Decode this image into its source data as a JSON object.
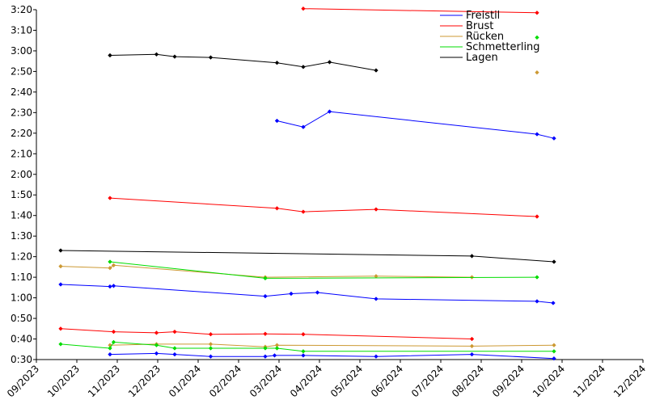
{
  "chart_data": {
    "type": "line",
    "title": "",
    "xlabel": "",
    "ylabel": "",
    "y_unit": "seconds",
    "ylim": [
      30,
      200
    ],
    "y_ticks": [
      {
        "v": 30,
        "label": "0:30"
      },
      {
        "v": 40,
        "label": "0:40"
      },
      {
        "v": 50,
        "label": "0:50"
      },
      {
        "v": 60,
        "label": "1:00"
      },
      {
        "v": 70,
        "label": "1:10"
      },
      {
        "v": 80,
        "label": "1:20"
      },
      {
        "v": 90,
        "label": "1:30"
      },
      {
        "v": 100,
        "label": "1:40"
      },
      {
        "v": 110,
        "label": "1:50"
      },
      {
        "v": 120,
        "label": "2:00"
      },
      {
        "v": 130,
        "label": "2:10"
      },
      {
        "v": 140,
        "label": "2:20"
      },
      {
        "v": 150,
        "label": "2:30"
      },
      {
        "v": 160,
        "label": "2:40"
      },
      {
        "v": 170,
        "label": "2:50"
      },
      {
        "v": 180,
        "label": "3:00"
      },
      {
        "v": 190,
        "label": "3:10"
      },
      {
        "v": 200,
        "label": "3:20"
      }
    ],
    "x_unit": "months since 09/2023",
    "xlim": [
      0,
      15
    ],
    "x_ticks": [
      {
        "v": 0,
        "label": "09/2023"
      },
      {
        "v": 1,
        "label": "10/2023"
      },
      {
        "v": 2,
        "label": "11/2023"
      },
      {
        "v": 3,
        "label": "12/2023"
      },
      {
        "v": 4,
        "label": "01/2024"
      },
      {
        "v": 5,
        "label": "02/2024"
      },
      {
        "v": 6,
        "label": "03/2024"
      },
      {
        "v": 7,
        "label": "04/2024"
      },
      {
        "v": 8,
        "label": "05/2024"
      },
      {
        "v": 9,
        "label": "06/2024"
      },
      {
        "v": 10,
        "label": "07/2024"
      },
      {
        "v": 11,
        "label": "08/2024"
      },
      {
        "v": 12,
        "label": "09/2024"
      },
      {
        "v": 13,
        "label": "10/2024"
      },
      {
        "v": 14,
        "label": "11/2024"
      },
      {
        "v": 15,
        "label": "12/2024"
      }
    ],
    "legend_position": "top-right",
    "series": [
      {
        "name": "Freistil",
        "color": "#0000ff",
        "lines": [
          [
            [
              0.6,
              66.5
            ],
            [
              1.82,
              65.5
            ],
            [
              1.91,
              65.8
            ],
            [
              5.66,
              60.8
            ],
            [
              6.3,
              62.0
            ],
            [
              6.95,
              62.6
            ],
            [
              8.4,
              59.5
            ],
            [
              12.38,
              58.3
            ],
            [
              12.78,
              57.5
            ]
          ],
          [
            [
              5.95,
              146.0
            ],
            [
              6.6,
              143.0
            ],
            [
              7.25,
              150.5
            ],
            [
              12.38,
              139.5
            ],
            [
              12.8,
              137.5
            ]
          ],
          [
            [
              1.82,
              32.5
            ],
            [
              2.97,
              33.0
            ],
            [
              3.42,
              32.5
            ],
            [
              4.31,
              31.5
            ],
            [
              5.66,
              31.5
            ],
            [
              5.89,
              32.0
            ],
            [
              6.6,
              32.0
            ],
            [
              8.4,
              31.5
            ],
            [
              10.77,
              32.5
            ],
            [
              12.8,
              30.5
            ]
          ]
        ]
      },
      {
        "name": "Brust",
        "color": "#ff0000",
        "lines": [
          [
            [
              0.6,
              45.0
            ],
            [
              1.91,
              43.5
            ],
            [
              2.97,
              43.0
            ],
            [
              3.42,
              43.5
            ],
            [
              4.31,
              42.3
            ],
            [
              5.66,
              42.5
            ],
            [
              6.6,
              42.3
            ],
            [
              10.77,
              40.0
            ]
          ],
          [
            [
              1.82,
              108.5
            ],
            [
              5.95,
              103.5
            ],
            [
              6.6,
              101.8
            ],
            [
              8.4,
              103.0
            ],
            [
              12.38,
              99.5
            ]
          ],
          [
            [
              6.6,
              200.5
            ],
            [
              12.38,
              198.5
            ]
          ]
        ]
      },
      {
        "name": "Rücken",
        "color": "#cc9933",
        "lines": [
          [
            [
              0.6,
              75.3
            ],
            [
              1.82,
              74.5
            ],
            [
              1.91,
              75.8
            ],
            [
              5.66,
              70.0
            ],
            [
              8.4,
              70.5
            ],
            [
              10.77,
              70.0
            ]
          ],
          [
            [
              1.82,
              37.0
            ],
            [
              2.97,
              37.5
            ],
            [
              4.31,
              37.5
            ],
            [
              5.66,
              36.2
            ],
            [
              5.95,
              37.0
            ],
            [
              10.77,
              36.5
            ],
            [
              12.8,
              37.0
            ]
          ],
          [
            [
              12.38,
              169.5
            ]
          ]
        ]
      },
      {
        "name": "Schmetterling",
        "color": "#00dd00",
        "lines": [
          [
            [
              1.82,
              77.5
            ],
            [
              5.66,
              69.5
            ],
            [
              12.38,
              70.0
            ]
          ],
          [
            [
              0.6,
              37.5
            ],
            [
              1.82,
              35.5
            ],
            [
              1.91,
              38.5
            ],
            [
              2.97,
              37.0
            ],
            [
              3.42,
              35.5
            ],
            [
              4.31,
              35.5
            ],
            [
              5.66,
              35.5
            ],
            [
              5.95,
              35.5
            ],
            [
              6.6,
              34.0
            ],
            [
              12.8,
              34.0
            ]
          ],
          [
            [
              12.38,
              186.5
            ]
          ]
        ]
      },
      {
        "name": "Lagen",
        "color": "#000000",
        "lines": [
          [
            [
              0.6,
              83.0
            ],
            [
              10.77,
              80.3
            ],
            [
              12.8,
              77.5
            ]
          ],
          [
            [
              1.82,
              177.8
            ],
            [
              2.97,
              178.3
            ],
            [
              3.42,
              177.2
            ],
            [
              4.31,
              176.8
            ],
            [
              5.95,
              174.2
            ],
            [
              6.6,
              172.2
            ],
            [
              7.25,
              174.5
            ],
            [
              8.4,
              170.5
            ]
          ]
        ]
      }
    ]
  }
}
